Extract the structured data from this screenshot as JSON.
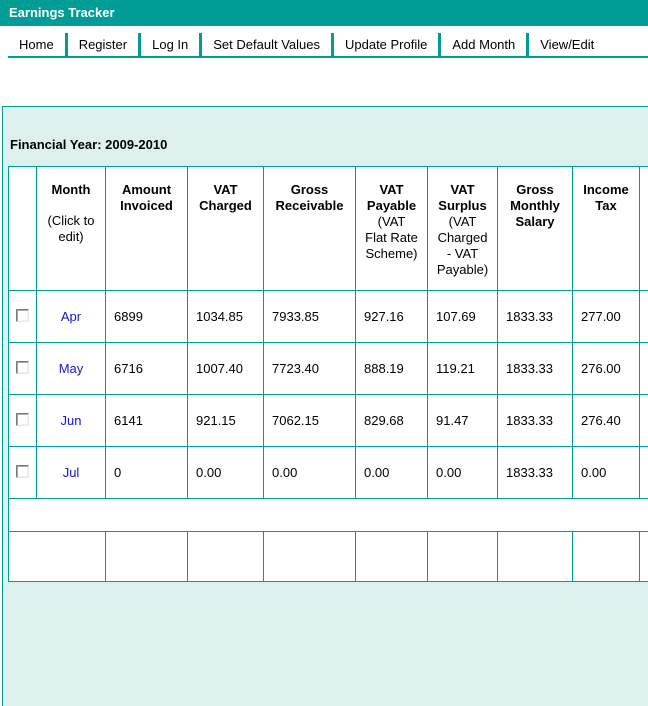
{
  "colors": {
    "teal": "#009c96",
    "panel_background": "#dcf0ee",
    "link_blue": "#1515cc"
  },
  "titlebar": {
    "title": "Earnings Tracker"
  },
  "nav": {
    "items": [
      {
        "label": "Home"
      },
      {
        "label": "Register"
      },
      {
        "label": "Log In"
      },
      {
        "label": "Set Default Values"
      },
      {
        "label": "Update Profile"
      },
      {
        "label": "Add Month"
      },
      {
        "label": "View/Edit"
      }
    ]
  },
  "content": {
    "financial_year_label": "Financial Year:",
    "financial_year_value": "2009-2010"
  },
  "table": {
    "columns": [
      {
        "key": "month",
        "label": "Month",
        "sub": "(Click to\nedit)"
      },
      {
        "key": "amount-invoiced",
        "label": "Amount\nInvoiced",
        "sub": ""
      },
      {
        "key": "vat-charged",
        "label": "VAT\nCharged",
        "sub": ""
      },
      {
        "key": "gross-receivable",
        "label": "Gross\nReceivable",
        "sub": ""
      },
      {
        "key": "vat-payable",
        "label": "VAT\nPayable",
        "sub": "(VAT\nFlat Rate\nScheme)"
      },
      {
        "key": "vat-surplus",
        "label": "VAT\nSurplus",
        "sub": "(VAT\nCharged\n- VAT\nPayable)"
      },
      {
        "key": "gross-monthly-salary",
        "label": "Gross\nMonthly\nSalary",
        "sub": ""
      },
      {
        "key": "income-tax",
        "label": "Income\nTax",
        "sub": ""
      },
      {
        "key": "cutoff",
        "label": "",
        "sub": ""
      }
    ],
    "rows": [
      {
        "month": "Apr",
        "values": [
          "6899",
          "1034.85",
          "7933.85",
          "927.16",
          "107.69",
          "1833.33",
          "277.00"
        ]
      },
      {
        "month": "May",
        "values": [
          "6716",
          "1007.40",
          "7723.40",
          "888.19",
          "119.21",
          "1833.33",
          "276.00"
        ]
      },
      {
        "month": "Jun",
        "values": [
          "6141",
          "921.15",
          "7062.15",
          "829.68",
          "91.47",
          "1833.33",
          "276.40"
        ]
      },
      {
        "month": "Jul",
        "values": [
          "0",
          "0.00",
          "0.00",
          "0.00",
          "0.00",
          "1833.33",
          "0.00"
        ]
      }
    ]
  }
}
